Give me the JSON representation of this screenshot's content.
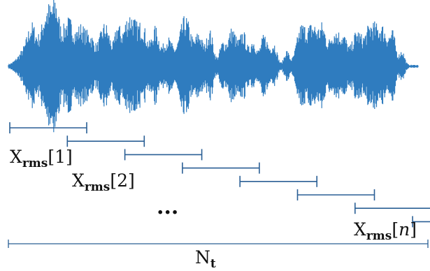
{
  "colors": {
    "waveform": "#2f7cbf",
    "window_bar": "#2a5f95",
    "total_bar": "#2a5f95",
    "text": "#111111"
  },
  "labels": {
    "first": {
      "base": "X",
      "sub": "rms",
      "open": "[",
      "index": "1",
      "close": "]"
    },
    "second": {
      "base": "X",
      "sub": "rms",
      "open": "[",
      "index": "2",
      "close": "]"
    },
    "last": {
      "base": "X",
      "sub": "rms",
      "open": "[",
      "index": "n",
      "close": "]"
    },
    "ellipsis": "...",
    "total": {
      "base": "N",
      "sub": "t"
    }
  },
  "windows": {
    "count": 8
  }
}
